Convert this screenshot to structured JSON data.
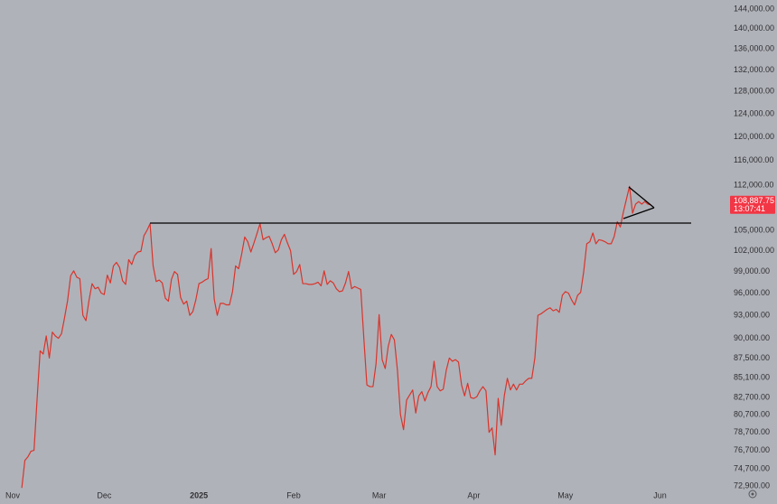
{
  "chart_data": {
    "type": "line",
    "log_scale": true,
    "grid": false,
    "color": "#d8352c",
    "categories": [
      "Nov",
      null,
      null,
      null,
      null,
      null,
      null,
      null,
      null,
      null,
      null,
      null,
      null,
      null,
      null,
      null,
      null,
      null,
      null,
      null,
      null,
      null,
      null,
      null,
      null,
      null,
      null,
      null,
      null,
      null,
      "Dec",
      null,
      null,
      null,
      null,
      null,
      null,
      null,
      null,
      null,
      null,
      null,
      null,
      null,
      null,
      null,
      null,
      null,
      null,
      null,
      null,
      null,
      null,
      null,
      null,
      null,
      null,
      null,
      null,
      null,
      null,
      "2025",
      null,
      null,
      null,
      null,
      null,
      null,
      null,
      null,
      null,
      null,
      null,
      null,
      null,
      null,
      null,
      null,
      null,
      null,
      null,
      null,
      null,
      null,
      null,
      null,
      null,
      null,
      null,
      null,
      null,
      null,
      "Feb",
      null,
      null,
      null,
      null,
      null,
      null,
      null,
      null,
      null,
      null,
      null,
      null,
      null,
      null,
      null,
      null,
      null,
      null,
      null,
      null,
      null,
      null,
      null,
      null,
      null,
      null,
      null,
      "Mar",
      null,
      null,
      null,
      null,
      null,
      null,
      null,
      null,
      null,
      null,
      null,
      null,
      null,
      null,
      null,
      null,
      null,
      null,
      null,
      null,
      null,
      null,
      null,
      null,
      null,
      null,
      null,
      null,
      null,
      null,
      "Apr",
      null,
      null,
      null,
      null,
      null,
      null,
      null,
      null,
      null,
      null,
      null,
      null,
      null,
      null,
      null,
      null,
      null,
      null,
      null,
      null,
      null,
      null,
      null,
      null,
      null,
      null,
      null,
      null,
      null,
      "May",
      null,
      null,
      null,
      null,
      null,
      null,
      null,
      null,
      null,
      null,
      null,
      null,
      null,
      null,
      null,
      null,
      null,
      null,
      null,
      null,
      null,
      null,
      null,
      null,
      null,
      null,
      null,
      null,
      null,
      null,
      "Jun"
    ],
    "values": [
      null,
      null,
      null,
      72700,
      75600,
      76000,
      76600,
      76700,
      82500,
      88400,
      88000,
      90300,
      87500,
      90800,
      90300,
      90000,
      90600,
      92700,
      95000,
      98400,
      99100,
      98200,
      98000,
      93000,
      92300,
      95000,
      97300,
      96600,
      96800,
      96000,
      95800,
      98500,
      97400,
      99800,
      100300,
      99600,
      97700,
      97200,
      100700,
      100000,
      101300,
      101800,
      101900,
      104200,
      105000,
      106000,
      99800,
      97600,
      97800,
      97400,
      95300,
      94900,
      97900,
      99000,
      98600,
      95400,
      94500,
      94900,
      93000,
      93500,
      95100,
      97300,
      97500,
      97800,
      98000,
      102300,
      95200,
      93000,
      94600,
      94600,
      94400,
      94400,
      96200,
      99800,
      99400,
      101500,
      104000,
      103300,
      101800,
      103100,
      104500,
      106000,
      103600,
      103900,
      104100,
      103000,
      101700,
      102100,
      103600,
      104400,
      103100,
      102000,
      98600,
      99000,
      100000,
      97300,
      97300,
      97200,
      97200,
      97300,
      97500,
      97000,
      99100,
      97200,
      97700,
      97400,
      96600,
      96200,
      96300,
      97400,
      99000,
      96600,
      96900,
      96700,
      96500,
      90000,
      84200,
      84000,
      84000,
      86800,
      93100,
      87300,
      86200,
      89000,
      90500,
      89800,
      86000,
      80700,
      79000,
      82400,
      83000,
      83600,
      80900,
      82900,
      83400,
      82300,
      83300,
      84000,
      87100,
      84000,
      83500,
      83700,
      86000,
      87500,
      87100,
      87300,
      87000,
      84200,
      82900,
      84400,
      82700,
      82600,
      82800,
      83500,
      84000,
      83500,
      78700,
      79200,
      76200,
      82600,
      79500,
      82900,
      85000,
      83600,
      84300,
      83600,
      84300,
      84300,
      84700,
      85000,
      85000,
      87500,
      93000,
      93200,
      93500,
      93800,
      94000,
      93600,
      93800,
      93400,
      95700,
      96200,
      96000,
      95100,
      94400,
      95700,
      96100,
      99000,
      103000,
      103300,
      104600,
      103000,
      103600,
      103500,
      103300,
      103000,
      103000,
      104100,
      106300,
      105500,
      107800,
      109800,
      111800,
      107600,
      109000,
      109400,
      109000,
      109400,
      109000,
      108887.75,
      null,
      null,
      null
    ],
    "ylim": [
      72900,
      144000
    ],
    "yticks": [
      {
        "value": 144000,
        "label": "144,000.00"
      },
      {
        "value": 140000,
        "label": "140,000.00"
      },
      {
        "value": 136000,
        "label": "136,000.00"
      },
      {
        "value": 132000,
        "label": "132,000.00"
      },
      {
        "value": 128000,
        "label": "128,000.00"
      },
      {
        "value": 124000,
        "label": "124,000.00"
      },
      {
        "value": 120000,
        "label": "120,000.00"
      },
      {
        "value": 116000,
        "label": "116,000.00"
      },
      {
        "value": 112000,
        "label": "112,000.00"
      },
      {
        "value": 105000,
        "label": "105,000.00"
      },
      {
        "value": 102000,
        "label": "102,000.00"
      },
      {
        "value": 99000,
        "label": "99,000.00"
      },
      {
        "value": 96000,
        "label": "96,000.00"
      },
      {
        "value": 93000,
        "label": "93,000.00"
      },
      {
        "value": 90000,
        "label": "90,000.00"
      },
      {
        "value": 87500,
        "label": "87,500.00"
      },
      {
        "value": 85100,
        "label": "85,100.00"
      },
      {
        "value": 82700,
        "label": "82,700.00"
      },
      {
        "value": 80700,
        "label": "80,700.00"
      },
      {
        "value": 78700,
        "label": "78,700.00"
      },
      {
        "value": 76700,
        "label": "76,700.00"
      },
      {
        "value": 74700,
        "label": "74,700.00"
      },
      {
        "value": 72900,
        "label": "72,900.00"
      }
    ],
    "last_price": {
      "value": 108887.75,
      "label": "108,887.75"
    },
    "countdown": "13:07:41"
  }
}
